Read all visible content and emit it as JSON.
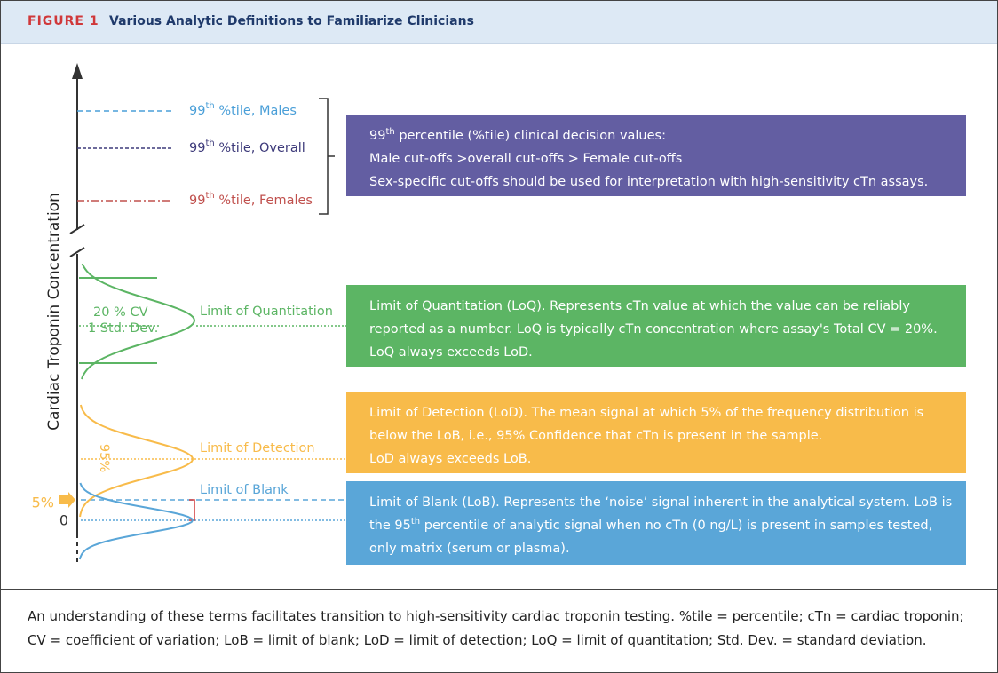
{
  "figure": {
    "label": "FIGURE 1",
    "title": "Various Analytic Definitions to Familiarize Clinicians"
  },
  "axis_label": "Cardiac Troponin Concentration",
  "percentiles": [
    {
      "num": "99",
      "sup": "th",
      "text": " %tile, Males",
      "color": "#4a9fd8"
    },
    {
      "num": "99",
      "sup": "th",
      "text": " %tile, Overall",
      "color": "#3d3a7a"
    },
    {
      "num": "99",
      "sup": "th",
      "text": " %tile, Females",
      "color": "#c0504d"
    }
  ],
  "curve_labels": {
    "cv": "20 % CV",
    "std_dev": "1 Std. Dev.",
    "loq": "Limit of Quantitation",
    "lod": "Limit of Detection",
    "lob": "Limit of Blank",
    "pct95": "95%",
    "pct5": "5%",
    "zero": "0"
  },
  "boxes": [
    {
      "color": "#635ea2",
      "lines": [
        [
          {
            "text": "99"
          },
          {
            "sup": "th"
          },
          {
            "text": " percentile (%tile) clinical decision values:"
          }
        ],
        [
          {
            "text": "Male cut-offs >overall cut-offs > Female cut-offs"
          }
        ],
        [
          {
            "text": "Sex-specific cut-offs should be used for interpretation with high-sensitivity cTn assays."
          }
        ]
      ]
    },
    {
      "color": "#5cb564",
      "lines": [
        [
          {
            "text": "Limit of Quantitation (LoQ). Represents cTn value at which the value can be reliably"
          }
        ],
        [
          {
            "text": "reported as a number. LoQ is typically cTn concentration where assay's Total CV = 20%."
          }
        ],
        [
          {
            "text": "LoQ always exceeds LoD."
          }
        ]
      ]
    },
    {
      "color": "#f8bb4a",
      "lines": [
        [
          {
            "text": "Limit of Detection (LoD). The mean signal at which 5% of the frequency distribution is"
          }
        ],
        [
          {
            "text": "below the LoB, i.e., 95% Confidence that cTn is present in the sample."
          }
        ],
        [
          {
            "text": "LoD always exceeds LoB."
          }
        ]
      ]
    },
    {
      "color": "#5aa6d8",
      "lines": [
        [
          {
            "text": "Limit of Blank (LoB). Represents the ‘noise’ signal inherent in the analytical system. LoB is"
          }
        ],
        [
          {
            "text": "the 95"
          },
          {
            "sup": "th"
          },
          {
            "text": " percentile of analytic signal when no cTn (0 ng/L) is present in samples tested,"
          }
        ],
        [
          {
            "text": "only matrix (serum or plasma)."
          }
        ]
      ]
    }
  ],
  "caption": "An understanding of these terms facilitates transition to high-sensitivity cardiac troponin testing. %tile = percentile; cTn = cardiac troponin; CV = coefficient of variation; LoB = limit of blank; LoD = limit of detection; LoQ = limit of quantitation; Std. Dev. = standard deviation."
}
